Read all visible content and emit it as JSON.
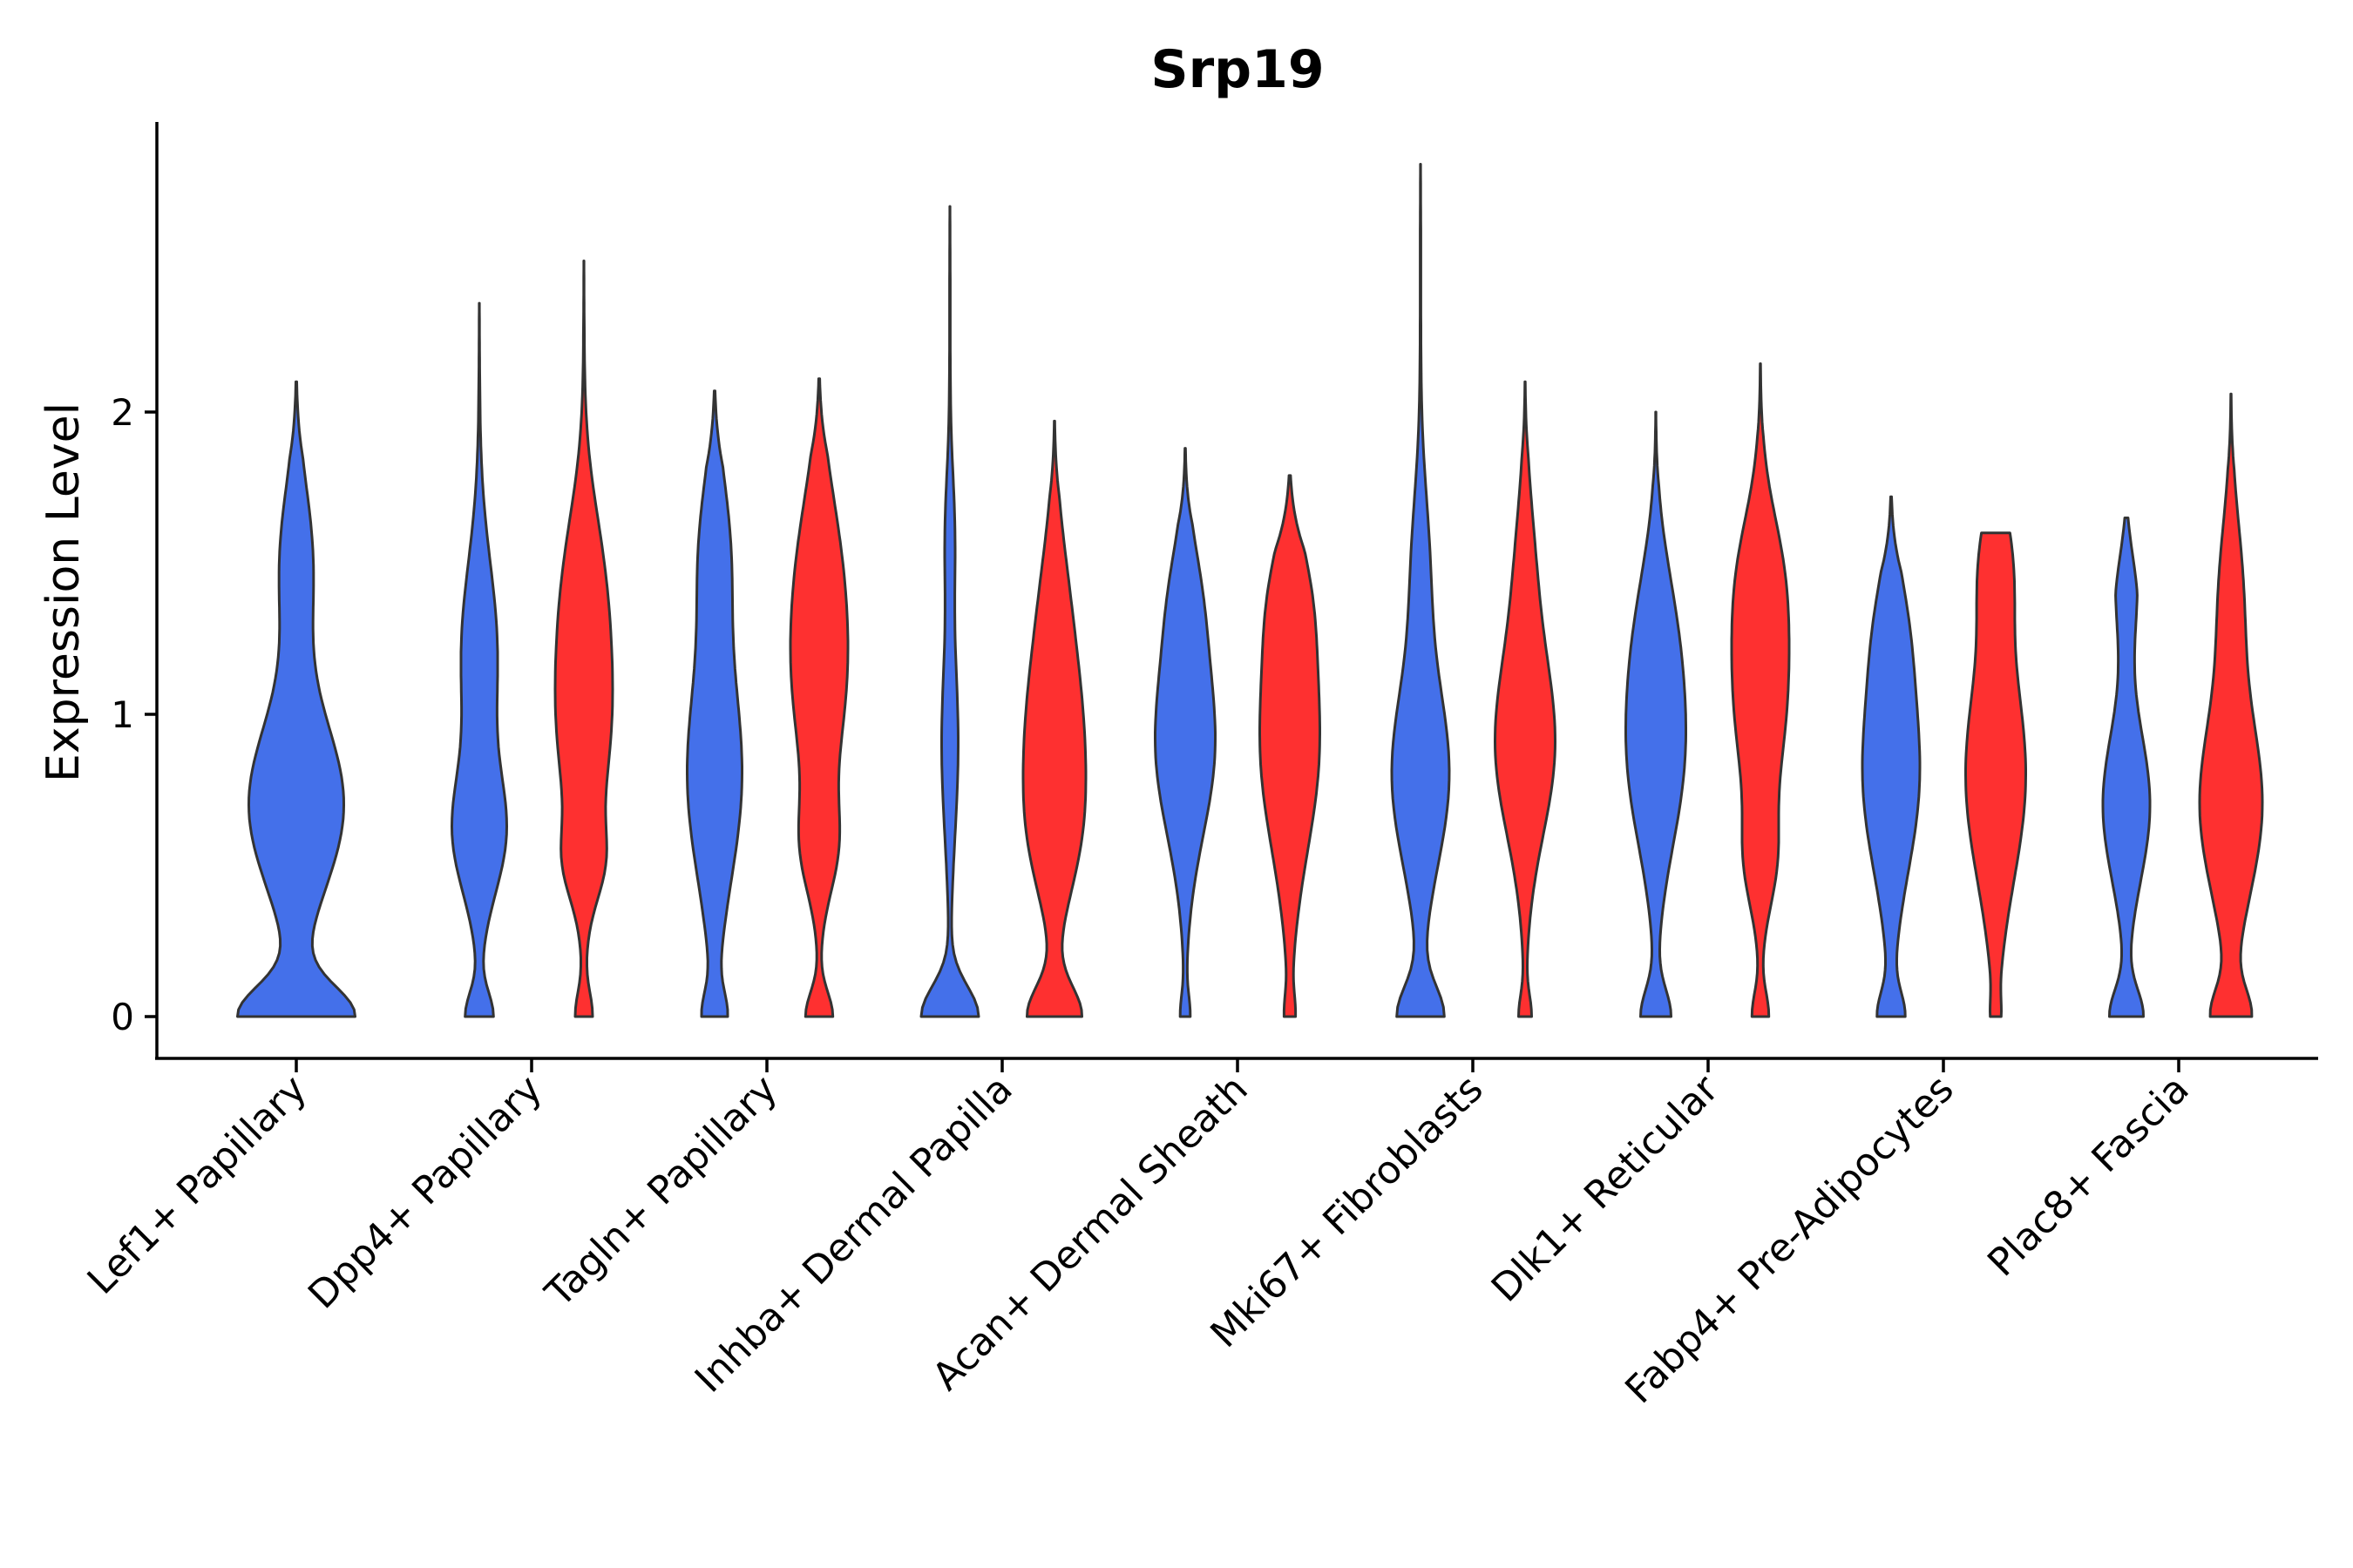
{
  "chart_data": {
    "type": "violin",
    "title": "Srp19",
    "xlabel": "",
    "ylabel": "Expression Level",
    "ylim": [
      -0.14,
      2.96
    ],
    "yticks": [
      0,
      1,
      2
    ],
    "grid": false,
    "legend": "none",
    "categories": [
      "Lef1+ Papillary",
      "Dpp4+ Papillary",
      "Tagln+ Papillary",
      "Inhba+ Dermal Papilla",
      "Acan+ Dermal Sheath",
      "Mki67+ Fibroblasts",
      "Dlk1+ Reticular",
      "Fabp4+ Pre-Adipocytes",
      "Plac8+ Fascia"
    ],
    "series": [
      {
        "name": "group 1",
        "color": "#4470EA",
        "violins": [
          {
            "category_index": 0,
            "max": 2.1,
            "width": 0.45,
            "bumps": [
              [
                0.0,
                0.9,
                0.1
              ],
              [
                0.7,
                0.75,
                0.28
              ],
              [
                1.5,
                0.25,
                0.25
              ]
            ]
          },
          {
            "category_index": 1,
            "max": 2.36,
            "width": 0.21,
            "bumps": [
              [
                0.0,
                0.5,
                0.08
              ],
              [
                0.6,
                0.9,
                0.2
              ],
              [
                1.2,
                0.65,
                0.3
              ]
            ]
          },
          {
            "category_index": 2,
            "max": 2.07,
            "width": 0.21,
            "bumps": [
              [
                0.0,
                0.4,
                0.08
              ],
              [
                0.8,
                1.0,
                0.35
              ],
              [
                1.55,
                0.5,
                0.25
              ]
            ]
          },
          {
            "category_index": 3,
            "max": 2.68,
            "width": 0.22,
            "bumps": [
              [
                0.0,
                1.0,
                0.1
              ],
              [
                0.9,
                0.28,
                0.3
              ],
              [
                1.6,
                0.15,
                0.2
              ]
            ]
          },
          {
            "category_index": 4,
            "max": 1.88,
            "width": 0.23,
            "bumps": [
              [
                0.0,
                0.15,
                0.07
              ],
              [
                0.9,
                1.0,
                0.3
              ],
              [
                1.4,
                0.35,
                0.2
              ]
            ]
          },
          {
            "category_index": 5,
            "max": 2.82,
            "width": 0.22,
            "bumps": [
              [
                0.0,
                0.8,
                0.1
              ],
              [
                0.8,
                1.0,
                0.3
              ],
              [
                1.5,
                0.28,
                0.25
              ]
            ]
          },
          {
            "category_index": 6,
            "max": 2.0,
            "width": 0.23,
            "bumps": [
              [
                0.0,
                0.55,
                0.09
              ],
              [
                0.85,
                1.0,
                0.3
              ],
              [
                1.3,
                0.5,
                0.25
              ]
            ]
          },
          {
            "category_index": 7,
            "max": 1.72,
            "width": 0.22,
            "bumps": [
              [
                0.0,
                0.45,
                0.08
              ],
              [
                0.8,
                1.0,
                0.32
              ],
              [
                1.3,
                0.35,
                0.2
              ]
            ]
          },
          {
            "category_index": 8,
            "max": 1.65,
            "width": 0.18,
            "bumps": [
              [
                0.0,
                0.7,
                0.09
              ],
              [
                0.7,
                1.0,
                0.25
              ],
              [
                1.45,
                0.45,
                0.2
              ]
            ]
          }
        ]
      },
      {
        "name": "group 2",
        "color": "#FE3030",
        "violins": [
          {
            "category_index": 1,
            "max": 2.5,
            "width": 0.22,
            "bumps": [
              [
                0.0,
                0.3,
                0.08
              ],
              [
                0.5,
                0.45,
                0.12
              ],
              [
                1.0,
                1.0,
                0.35
              ],
              [
                1.5,
                0.4,
                0.25
              ]
            ]
          },
          {
            "category_index": 2,
            "max": 2.11,
            "width": 0.22,
            "bumps": [
              [
                0.0,
                0.5,
                0.08
              ],
              [
                0.55,
                0.5,
                0.15
              ],
              [
                1.15,
                1.0,
                0.35
              ],
              [
                1.6,
                0.3,
                0.25
              ]
            ]
          },
          {
            "category_index": 3,
            "max": 1.97,
            "width": 0.24,
            "bumps": [
              [
                0.0,
                0.9,
                0.1
              ],
              [
                0.55,
                0.4,
                0.2
              ],
              [
                0.9,
                0.9,
                0.3
              ],
              [
                1.4,
                0.3,
                0.25
              ]
            ]
          },
          {
            "category_index": 4,
            "max": 1.79,
            "width": 0.23,
            "bumps": [
              [
                0.0,
                0.15,
                0.07
              ],
              [
                0.9,
                1.0,
                0.35
              ],
              [
                1.4,
                0.4,
                0.2
              ]
            ]
          },
          {
            "category_index": 5,
            "max": 2.1,
            "width": 0.23,
            "bumps": [
              [
                0.0,
                0.2,
                0.07
              ],
              [
                0.9,
                1.0,
                0.3
              ],
              [
                1.5,
                0.25,
                0.25
              ]
            ]
          },
          {
            "category_index": 6,
            "max": 2.16,
            "width": 0.22,
            "bumps": [
              [
                0.0,
                0.3,
                0.08
              ],
              [
                0.5,
                0.4,
                0.15
              ],
              [
                1.1,
                1.0,
                0.35
              ],
              [
                1.5,
                0.35,
                0.2
              ]
            ]
          },
          {
            "category_index": 7,
            "max": 1.6,
            "width": 0.23,
            "flat_top": true,
            "bumps": [
              [
                0.0,
                0.1,
                0.06
              ],
              [
                0.8,
                1.0,
                0.35
              ],
              [
                1.5,
                0.45,
                0.2
              ]
            ]
          },
          {
            "category_index": 8,
            "max": 2.06,
            "width": 0.24,
            "bumps": [
              [
                0.0,
                0.6,
                0.09
              ],
              [
                0.7,
                1.0,
                0.3
              ],
              [
                1.4,
                0.35,
                0.25
              ]
            ]
          }
        ]
      }
    ]
  }
}
